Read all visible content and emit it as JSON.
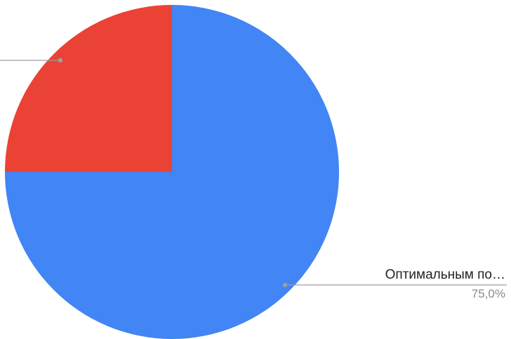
{
  "chart_data": {
    "type": "pie",
    "slices": [
      {
        "label": "Оптимальным по…",
        "percent_label": "75,0%",
        "value": 75.0,
        "color": "#4285f4"
      },
      {
        "label": "",
        "percent_label": "",
        "value": 25.0,
        "color": "#ea4335"
      }
    ],
    "start_angle_deg": 0,
    "direction": "clockwise",
    "leader_line_color": "#9e9e9e"
  }
}
